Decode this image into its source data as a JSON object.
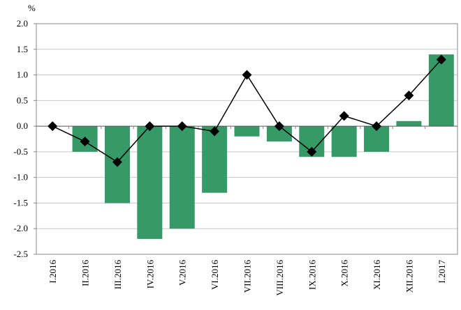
{
  "chart_data": {
    "type": "bar+line",
    "ylabel": "%",
    "ylim": [
      -2.5,
      2.0
    ],
    "yticks": [
      "2.0",
      "1.5",
      "1.0",
      "0.5",
      "0.0",
      "-0.5",
      "-1.0",
      "-1.5",
      "-2.0",
      "-2.5"
    ],
    "ytick_values": [
      2.0,
      1.5,
      1.0,
      0.5,
      0.0,
      -0.5,
      -1.0,
      -1.5,
      -2.0,
      -2.5
    ],
    "grid": true,
    "categories": [
      "I.2016",
      "II.2016",
      "III.2016",
      "IV.2016",
      "V.2016",
      "VI.2016",
      "VII.2016",
      "VIII.2016",
      "IX.2016",
      "X.2016",
      "XI.2016",
      "XII.2016",
      "I.2017"
    ],
    "series": [
      {
        "type": "bar",
        "color": "#359968",
        "values": [
          0,
          -0.5,
          -1.5,
          -2.2,
          -2.0,
          -1.3,
          -0.2,
          -0.3,
          -0.6,
          -0.6,
          -0.5,
          0.1,
          1.4
        ]
      },
      {
        "type": "line",
        "color": "#000000",
        "marker": "diamond",
        "values": [
          0,
          -0.3,
          -0.7,
          0,
          0,
          -0.1,
          1.0,
          0,
          -0.5,
          0.2,
          0,
          0.6,
          1.3
        ]
      }
    ]
  }
}
